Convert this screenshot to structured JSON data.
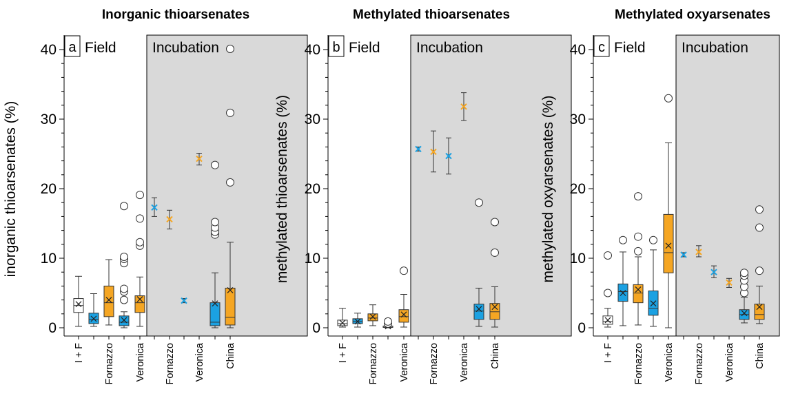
{
  "chart_data": [
    {
      "type": "box",
      "title": "Inorganic thioarsenates",
      "panel_letter": "a",
      "ylabel": "inorganic thioarsenates (%)",
      "ylim": [
        0,
        40
      ],
      "yticks": [
        "0",
        "10",
        "20",
        "30",
        "40"
      ],
      "section_labels": [
        "Field",
        "Incubation"
      ],
      "x_labels": [
        "I + F",
        "Fornazzo",
        "Veronica",
        "Fornazzo",
        "Veronica",
        "China"
      ],
      "colors": {
        "white": "#ffffff",
        "blue": "#1ba1e2",
        "orange": "#f5a623",
        "incubation_bg": "#d9d9d9"
      },
      "groups": [
        {
          "section": "Field",
          "color": "white",
          "min": 0.2,
          "q1": 2.2,
          "median": 3.2,
          "q3": 4.2,
          "max": 7.4,
          "mean": 3.4,
          "outliers": []
        },
        {
          "section": "Field",
          "color": "blue",
          "min": 0.2,
          "q1": 0.6,
          "median": 1.2,
          "q3": 2.1,
          "max": 4.9,
          "mean": 1.3,
          "outliers": []
        },
        {
          "section": "Field",
          "color": "orange",
          "min": 0.4,
          "q1": 1.6,
          "median": 3.6,
          "q3": 6.0,
          "max": 9.8,
          "mean": 4.0,
          "outliers": []
        },
        {
          "section": "Field",
          "color": "blue",
          "min": 0.0,
          "q1": 0.3,
          "median": 0.8,
          "q3": 1.7,
          "max": 2.3,
          "mean": 1.1,
          "outliers": [
            4.0,
            5.2,
            5.6,
            9.3,
            9.9,
            10.2,
            17.5
          ]
        },
        {
          "section": "Field",
          "color": "orange",
          "min": 0.2,
          "q1": 2.2,
          "median": 3.6,
          "q3": 4.6,
          "max": 7.3,
          "mean": 4.1,
          "outliers": [
            11.8,
            12.3,
            15.7,
            19.1
          ]
        },
        {
          "section": "Incubation",
          "color": "blue",
          "type": "mean_sd",
          "mean": 17.3,
          "sd_low": 16.0,
          "sd_high": 18.7
        },
        {
          "section": "Incubation",
          "color": "orange",
          "type": "mean_sd",
          "mean": 15.6,
          "sd_low": 14.2,
          "sd_high": 16.9
        },
        {
          "section": "Incubation",
          "color": "blue",
          "type": "mean_sd",
          "mean": 3.9,
          "sd_low": 3.6,
          "sd_high": 4.2
        },
        {
          "section": "Incubation",
          "color": "orange",
          "type": "mean_sd",
          "mean": 24.3,
          "sd_low": 23.4,
          "sd_high": 25.1
        },
        {
          "section": "Incubation",
          "color": "blue",
          "min": 0.0,
          "q1": 0.3,
          "median": 0.8,
          "q3": 3.6,
          "max": 7.9,
          "mean": 3.5,
          "outliers": [
            13.4,
            13.8,
            14.4,
            15.2,
            23.4
          ]
        },
        {
          "section": "Incubation",
          "color": "orange",
          "min": 0.0,
          "q1": 0.4,
          "median": 1.5,
          "q3": 5.7,
          "max": 12.3,
          "mean": 5.4,
          "outliers": [
            20.9,
            30.9,
            40.1
          ]
        }
      ]
    },
    {
      "type": "box",
      "title": "Methylated thioarsenates",
      "panel_letter": "b",
      "ylabel": "methylated thioarsenates (%)",
      "ylim": [
        0,
        40
      ],
      "yticks": [
        "0",
        "10",
        "20",
        "30",
        "40"
      ],
      "section_labels": [
        "Field",
        "Incubation"
      ],
      "x_labels": [
        "I + F",
        "Fornazzo",
        "Veronica",
        "Fornazzo",
        "Veronica",
        "China"
      ],
      "colors": {
        "white": "#ffffff",
        "blue": "#1ba1e2",
        "orange": "#f5a623",
        "incubation_bg": "#d9d9d9"
      },
      "groups": [
        {
          "section": "Field",
          "color": "white",
          "min": 0.1,
          "q1": 0.3,
          "median": 0.6,
          "q3": 1.1,
          "max": 2.8,
          "mean": 0.7,
          "outliers": []
        },
        {
          "section": "Field",
          "color": "blue",
          "min": 0.1,
          "q1": 0.6,
          "median": 0.9,
          "q3": 1.3,
          "max": 2.1,
          "mean": 0.9,
          "outliers": []
        },
        {
          "section": "Field",
          "color": "orange",
          "min": 0.3,
          "q1": 1.0,
          "median": 1.4,
          "q3": 2.0,
          "max": 3.3,
          "mean": 1.6,
          "outliers": []
        },
        {
          "section": "Field",
          "color": "white",
          "min": 0.0,
          "q1": 0.05,
          "median": 0.1,
          "q3": 0.25,
          "max": 0.5,
          "mean": 0.2,
          "outliers": [
            0.6,
            0.9
          ]
        },
        {
          "section": "Field",
          "color": "orange",
          "min": 0.1,
          "q1": 0.8,
          "median": 1.6,
          "q3": 2.6,
          "max": 4.8,
          "mean": 1.9,
          "outliers": [
            8.2
          ]
        },
        {
          "section": "Incubation",
          "color": "blue",
          "type": "mean_sd",
          "mean": 25.7,
          "sd_low": 25.4,
          "sd_high": 26.0
        },
        {
          "section": "Incubation",
          "color": "orange",
          "type": "mean_sd",
          "mean": 25.3,
          "sd_low": 22.4,
          "sd_high": 28.3
        },
        {
          "section": "Incubation",
          "color": "blue",
          "type": "mean_sd",
          "mean": 24.7,
          "sd_low": 22.1,
          "sd_high": 27.3
        },
        {
          "section": "Incubation",
          "color": "orange",
          "type": "mean_sd",
          "mean": 31.8,
          "sd_low": 29.8,
          "sd_high": 33.8
        },
        {
          "section": "Incubation",
          "color": "blue",
          "min": 0.2,
          "q1": 1.2,
          "median": 2.4,
          "q3": 3.4,
          "max": 5.7,
          "mean": 2.7,
          "outliers": [
            18.0
          ]
        },
        {
          "section": "Incubation",
          "color": "orange",
          "min": 0.1,
          "q1": 1.2,
          "median": 2.3,
          "q3": 3.5,
          "max": 5.9,
          "mean": 3.0,
          "outliers": [
            10.8,
            15.2
          ]
        }
      ]
    },
    {
      "type": "box",
      "title": "Methylated oxyarsenates",
      "panel_letter": "c",
      "ylabel": "methylated oxyarsenates (%)",
      "ylim": [
        0,
        40
      ],
      "yticks": [
        "0",
        "10",
        "20",
        "30",
        "40"
      ],
      "section_labels": [
        "Field",
        "Incubation"
      ],
      "x_labels": [
        "I + F",
        "Fornazzo",
        "Veronica",
        "Fornazzo",
        "Veronica",
        "China"
      ],
      "colors": {
        "white": "#ffffff",
        "blue": "#1ba1e2",
        "orange": "#f5a623",
        "incubation_bg": "#d9d9d9"
      },
      "groups": [
        {
          "section": "Field",
          "color": "white",
          "min": 0.1,
          "q1": 0.5,
          "median": 0.9,
          "q3": 1.7,
          "max": 2.8,
          "mean": 1.1,
          "outliers": [
            5.0,
            10.4
          ]
        },
        {
          "section": "Field",
          "color": "blue",
          "min": 0.3,
          "q1": 3.8,
          "median": 5.2,
          "q3": 6.3,
          "max": 10.9,
          "mean": 5.0,
          "outliers": [
            12.6
          ]
        },
        {
          "section": "Field",
          "color": "orange",
          "min": 0.4,
          "q1": 3.6,
          "median": 5.0,
          "q3": 6.2,
          "max": 10.2,
          "mean": 5.5,
          "outliers": [
            11.0,
            13.1,
            18.9
          ]
        },
        {
          "section": "Field",
          "color": "blue",
          "min": 0.2,
          "q1": 1.8,
          "median": 2.8,
          "q3": 5.3,
          "max": 11.2,
          "mean": 3.5,
          "outliers": [
            12.6
          ]
        },
        {
          "section": "Field",
          "color": "orange",
          "min": 0.0,
          "q1": 7.9,
          "median": 10.8,
          "q3": 16.3,
          "max": 26.6,
          "mean": 11.8,
          "outliers": [
            33.0
          ]
        },
        {
          "section": "Incubation",
          "color": "blue",
          "type": "mean_sd",
          "mean": 10.5,
          "sd_low": 10.2,
          "sd_high": 10.8
        },
        {
          "section": "Incubation",
          "color": "orange",
          "type": "mean_sd",
          "mean": 10.9,
          "sd_low": 10.2,
          "sd_high": 11.8
        },
        {
          "section": "Incubation",
          "color": "blue",
          "type": "mean_sd",
          "mean": 8.0,
          "sd_low": 7.2,
          "sd_high": 8.9
        },
        {
          "section": "Incubation",
          "color": "orange",
          "type": "mean_sd",
          "mean": 6.5,
          "sd_low": 5.8,
          "sd_high": 7.1
        },
        {
          "section": "Incubation",
          "color": "blue",
          "min": 0.7,
          "q1": 1.2,
          "median": 1.9,
          "q3": 2.6,
          "max": 4.4,
          "mean": 2.1,
          "outliers": [
            5.0,
            5.9,
            6.8,
            7.5,
            7.9
          ]
        },
        {
          "section": "Incubation",
          "color": "orange",
          "min": 0.6,
          "q1": 1.2,
          "median": 1.9,
          "q3": 3.4,
          "max": 6.0,
          "mean": 3.0,
          "outliers": [
            8.2,
            14.4,
            17.0
          ]
        }
      ]
    }
  ]
}
